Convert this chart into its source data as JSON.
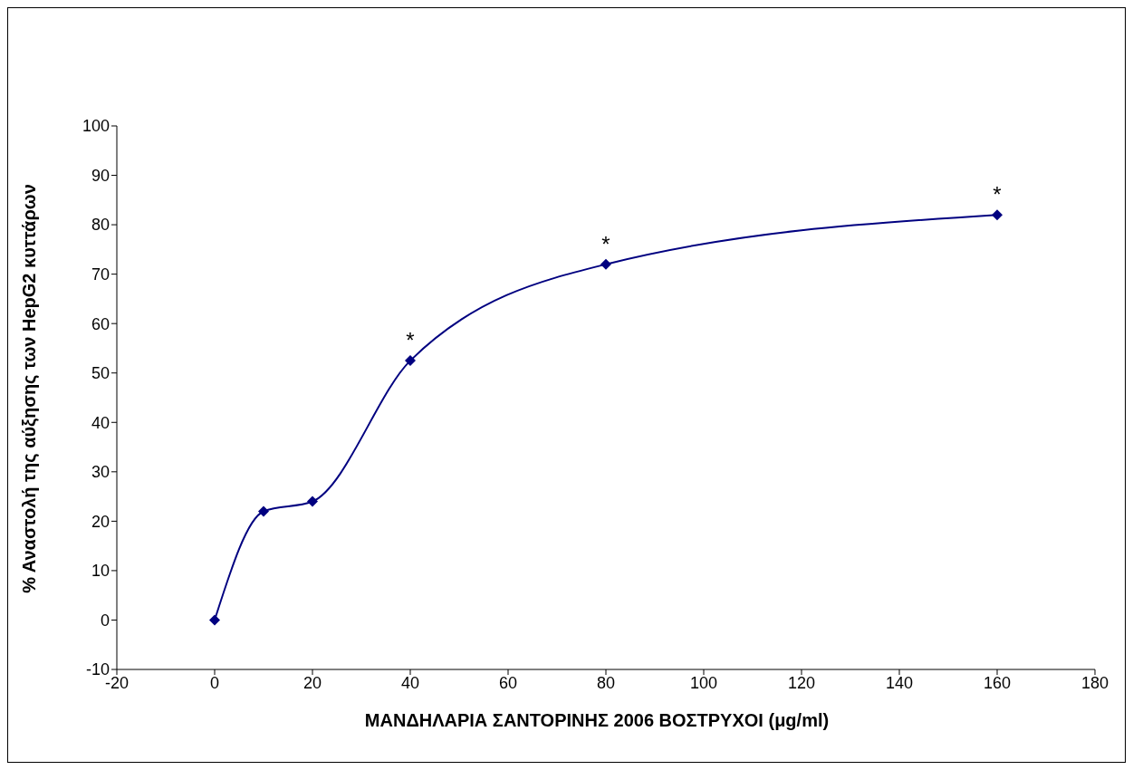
{
  "chart_data": {
    "type": "line",
    "xlabel": "ΜΑΝΔΗΛΑΡΙΑ ΣΑΝΤΟΡΙΝΗΣ 2006 ΒΟΣΤΡΥΧΟΙ (μg/ml)",
    "ylabel": "% Αναστολή της αύξησης των HepG2 κυττάρων",
    "x": [
      0,
      10,
      20,
      40,
      80,
      160
    ],
    "series": [
      {
        "color": "#000080",
        "values": [
          0,
          22,
          24,
          52.5,
          72,
          82
        ]
      }
    ],
    "xlim": [
      -20,
      180
    ],
    "xticks": [
      -20,
      0,
      20,
      40,
      60,
      80,
      100,
      120,
      140,
      160,
      180
    ],
    "ylim": [
      -10,
      100
    ],
    "yticks": [
      -10,
      0,
      10,
      20,
      30,
      40,
      50,
      60,
      70,
      80,
      90,
      100
    ],
    "annotations": [
      {
        "text": "*",
        "x": 40,
        "y": 52.5
      },
      {
        "text": "*",
        "x": 80,
        "y": 72
      },
      {
        "text": "*",
        "x": 160,
        "y": 82
      }
    ],
    "marker": "diamond",
    "line_style": "solid",
    "grid": false,
    "legend": false
  }
}
